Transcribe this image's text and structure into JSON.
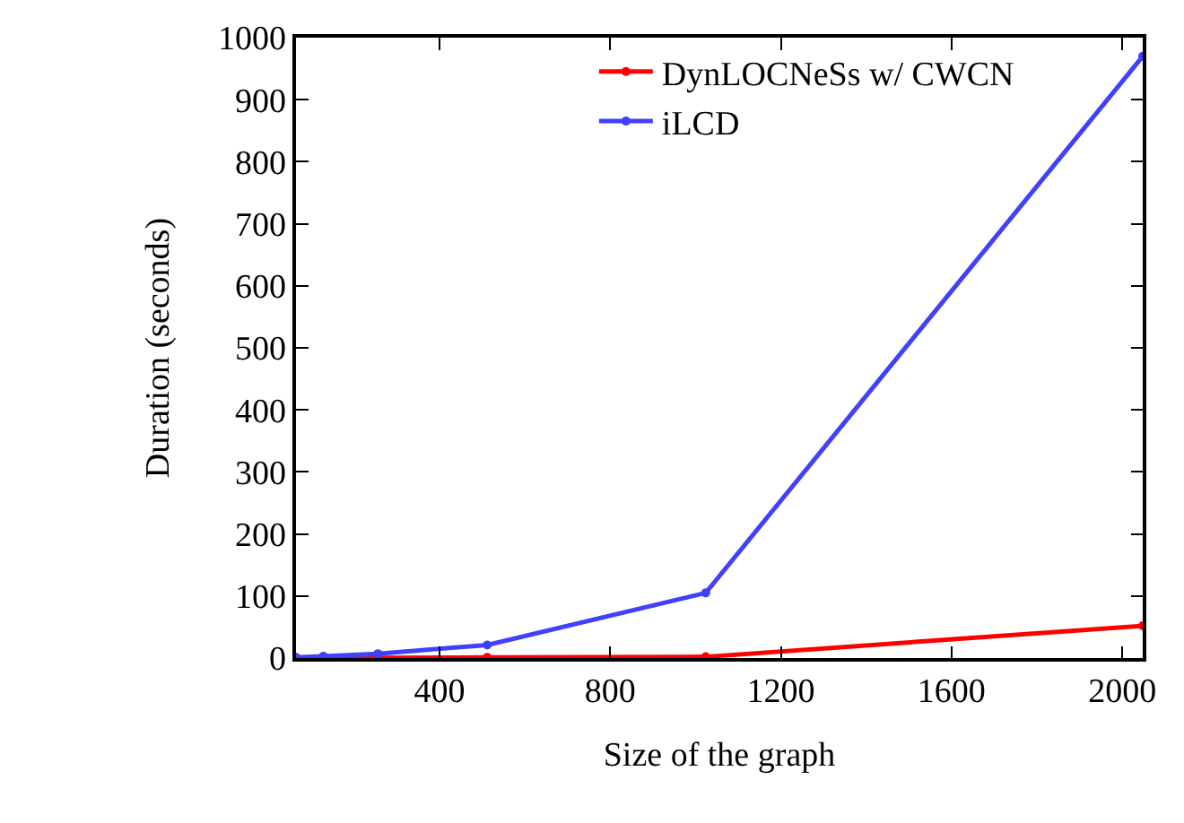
{
  "chart_data": {
    "type": "line",
    "xlabel": "Size of the graph",
    "ylabel": "Duration (seconds)",
    "x": [
      64,
      128,
      256,
      512,
      1024,
      2048
    ],
    "series": [
      {
        "name": "DynLOCNeSs w/ CWCN",
        "color": "#ff0000",
        "values": [
          0.5,
          0.5,
          0.5,
          1,
          2,
          52
        ]
      },
      {
        "name": "iLCD",
        "color": "#4040ff",
        "values": [
          1,
          3,
          7,
          21,
          105,
          970
        ]
      }
    ],
    "xlim": [
      64,
      2048
    ],
    "xticks": [
      400,
      800,
      1200,
      1600,
      2000
    ],
    "ylim": [
      0,
      1000
    ],
    "yticks": [
      0,
      100,
      200,
      300,
      400,
      500,
      600,
      700,
      800,
      900,
      1000
    ],
    "grid": false,
    "legend": "top right",
    "marker": "circle",
    "line_style": "solid"
  }
}
